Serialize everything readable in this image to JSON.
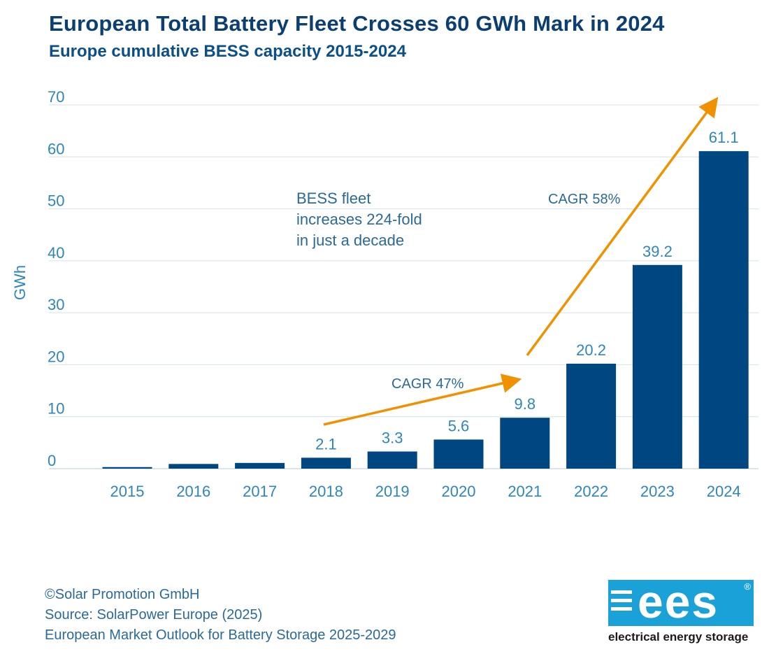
{
  "header": {
    "title": "European Total Battery Fleet Crosses 60 GWh Mark in 2024",
    "subtitle": "Europe cumulative BESS capacity 2015-2024"
  },
  "chart_data": {
    "type": "bar",
    "categories": [
      "2015",
      "2016",
      "2017",
      "2018",
      "2019",
      "2020",
      "2021",
      "2022",
      "2023",
      "2024"
    ],
    "values": [
      0.3,
      0.9,
      1.1,
      2.1,
      3.3,
      5.6,
      9.8,
      20.2,
      39.2,
      61.1
    ],
    "data_labels": [
      "",
      "",
      "",
      "2.1",
      "3.3",
      "5.6",
      "9.8",
      "20.2",
      "39.2",
      "61.1"
    ],
    "ylabel": "GWh",
    "ylim": [
      0,
      70
    ],
    "yticks": [
      "0",
      "10",
      "20",
      "30",
      "40",
      "50",
      "60",
      "70"
    ],
    "grid": true,
    "bar_color": "#004680",
    "annotations": {
      "note_lines": [
        "BESS fleet",
        "increases 224-fold",
        "in just a decade"
      ],
      "cagr_early": "CAGR 47%",
      "cagr_late": "CAGR 58%",
      "arrow_color": "#f29100"
    }
  },
  "footer": {
    "lines": [
      "©Solar Promotion GmbH",
      "Source: SolarPower Europe (2025)",
      "European Market Outlook for Battery Storage 2025-2029"
    ]
  },
  "logo": {
    "letters": "ees",
    "reg": "®",
    "caption": "electrical energy storage"
  }
}
